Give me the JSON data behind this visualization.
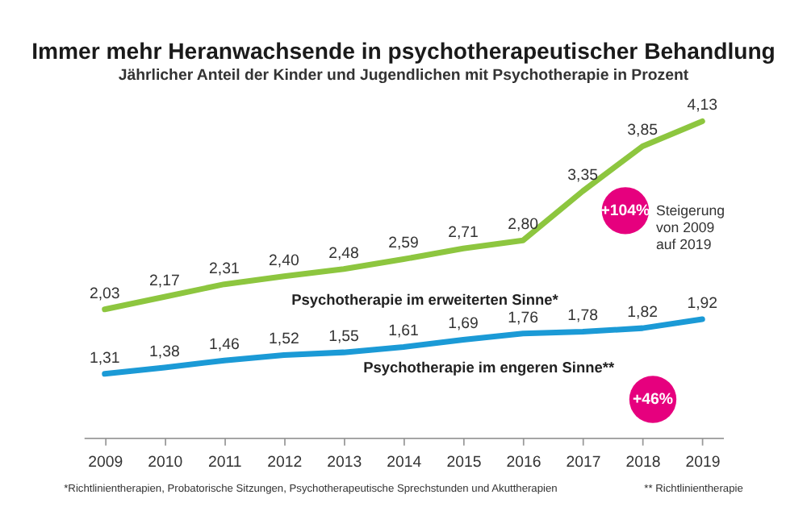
{
  "chart_data": {
    "type": "line",
    "title": "Immer mehr Heranwachsende in psychotherapeutischer Behandlung",
    "subtitle": "Jährlicher Anteil der Kinder und Jugendlichen mit Psychotherapie in Prozent",
    "categories": [
      "2009",
      "2010",
      "2011",
      "2012",
      "2013",
      "2014",
      "2015",
      "2016",
      "2017",
      "2018",
      "2019"
    ],
    "series": [
      {
        "name": "Psychotherapie im erweiterten Sinne*",
        "color": "#8dc63f",
        "values": [
          2.03,
          2.17,
          2.31,
          2.4,
          2.48,
          2.59,
          2.71,
          2.8,
          3.35,
          3.85,
          4.13
        ],
        "value_labels": [
          "2,03",
          "2,17",
          "2,31",
          "2,40",
          "2,48",
          "2,59",
          "2,71",
          "2,80",
          "3,35",
          "3,85",
          "4,13"
        ]
      },
      {
        "name": "Psychotherapie im engeren Sinne**",
        "color": "#1b9ad6",
        "values": [
          1.31,
          1.38,
          1.46,
          1.52,
          1.55,
          1.61,
          1.69,
          1.76,
          1.78,
          1.82,
          1.92
        ],
        "value_labels": [
          "1,31",
          "1,38",
          "1,46",
          "1,52",
          "1,55",
          "1,61",
          "1,69",
          "1,76",
          "1,78",
          "1,82",
          "1,92"
        ]
      }
    ],
    "annotations": [
      "+104%",
      "Steigerung\nvon 2009\nauf 2019",
      "+46%",
      "*Richtlinientherapien, Probatorische Sitzungen, Psychotherapeutische Sprechstunden und Akuttherapien",
      "** Richtlinientherapie"
    ],
    "legend": false,
    "marker": "none",
    "grid": false
  }
}
